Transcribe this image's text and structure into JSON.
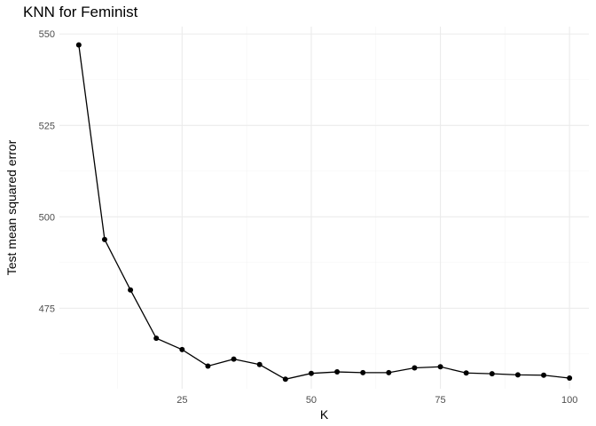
{
  "chart_data": {
    "type": "line",
    "title": "KNN for Feminist",
    "xlabel": "K",
    "ylabel": "Test mean squared error",
    "xlim": [
      1.25,
      103.75
    ],
    "ylim": [
      453,
      552
    ],
    "x_ticks": [
      25,
      50,
      75,
      100
    ],
    "y_ticks": [
      475,
      500,
      525,
      550
    ],
    "grid": true,
    "x": [
      5,
      10,
      15,
      20,
      25,
      30,
      35,
      40,
      45,
      50,
      55,
      60,
      65,
      70,
      75,
      80,
      85,
      90,
      95,
      100
    ],
    "values": [
      547.0,
      493.8,
      480.0,
      466.8,
      463.7,
      459.2,
      461.1,
      459.6,
      455.6,
      457.2,
      457.6,
      457.4,
      457.4,
      458.7,
      459.0,
      457.3,
      457.1,
      456.8,
      456.7,
      455.9
    ],
    "colors": {
      "line": "#000000",
      "point": "#000000",
      "grid": "#ebebeb"
    }
  }
}
